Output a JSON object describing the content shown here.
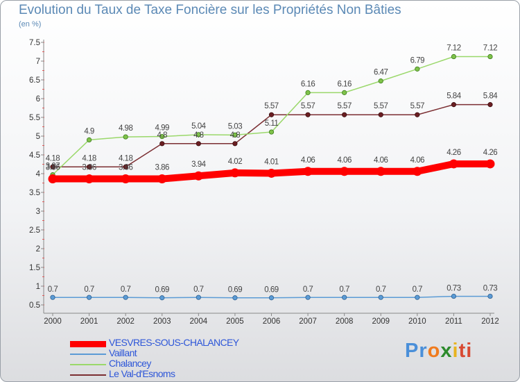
{
  "header": {
    "title": "Evolution du Taux de Taxe Foncière sur les Propriétés Non Bâties",
    "unit": "(en %)"
  },
  "chart_data": {
    "type": "line",
    "title": "Evolution du Taux de Taxe Foncière sur les Propriétés Non Bâties",
    "ylabel": "(en %)",
    "xlabel": "",
    "ylim": [
      0.5,
      7.5
    ],
    "yticks": [
      "0.5",
      "1",
      "1.5",
      "2",
      "2.5",
      "3",
      "3.5",
      "4",
      "4.5",
      "5",
      "5.5",
      "6",
      "6.5",
      "7",
      "7.5"
    ],
    "categories": [
      "2000",
      "2001",
      "2002",
      "2003",
      "2004",
      "2005",
      "2006",
      "2007",
      "2008",
      "2009",
      "2010",
      "2011",
      "2012"
    ],
    "series": [
      {
        "name": "VESVRES-SOUS-CHALANCEY",
        "color": "#ff0000",
        "values": [
          3.86,
          3.86,
          3.86,
          3.86,
          3.94,
          4.02,
          4.01,
          4.06,
          4.06,
          4.06,
          4.06,
          4.26,
          4.26
        ],
        "labels": [
          "3.86",
          "3.86",
          "3.86",
          "3.86",
          "3.94",
          "4.02",
          "4.01",
          "4.06",
          "4.06",
          "4.06",
          "4.06",
          "4.26",
          "4.26"
        ]
      },
      {
        "name": "Vaillant",
        "color": "#5b9bd5",
        "values": [
          0.7,
          0.7,
          0.7,
          0.69,
          0.7,
          0.69,
          0.69,
          0.7,
          0.7,
          0.7,
          0.7,
          0.73,
          0.73
        ],
        "labels": [
          "0.7",
          "0.7",
          "0.7",
          "0.69",
          "0.7",
          "0.69",
          "0.69",
          "0.7",
          "0.7",
          "0.7",
          "0.7",
          "0.73",
          "0.73"
        ]
      },
      {
        "name": "Chalancey",
        "color": "#9ad86a",
        "values": [
          3.97,
          4.9,
          4.98,
          4.99,
          5.04,
          5.03,
          5.11,
          6.16,
          6.16,
          6.47,
          6.79,
          7.12,
          7.12
        ],
        "labels": [
          "3.97",
          "4.9",
          "4.98",
          "4.99",
          "5.04",
          "5.03",
          "5.11",
          "6.16",
          "6.16",
          "6.47",
          "6.79",
          "7.12",
          "7.12"
        ]
      },
      {
        "name": "Le Val-d'Esnoms",
        "color": "#7b2e32",
        "values": [
          4.18,
          4.18,
          4.18,
          4.8,
          4.8,
          4.8,
          5.57,
          5.57,
          5.57,
          5.57,
          5.57,
          5.84,
          5.84
        ],
        "labels": [
          "4.18",
          "4.18",
          "4.18",
          "4.8",
          "4.8",
          "4.8",
          "5.57",
          "5.57",
          "5.57",
          "5.57",
          "5.57",
          "5.84",
          "5.84"
        ]
      }
    ],
    "legend_position": "bottom-left"
  },
  "logo": {
    "text": "Proxiti",
    "letters": [
      "Pr",
      "o",
      "x",
      "i",
      "ti"
    ]
  }
}
